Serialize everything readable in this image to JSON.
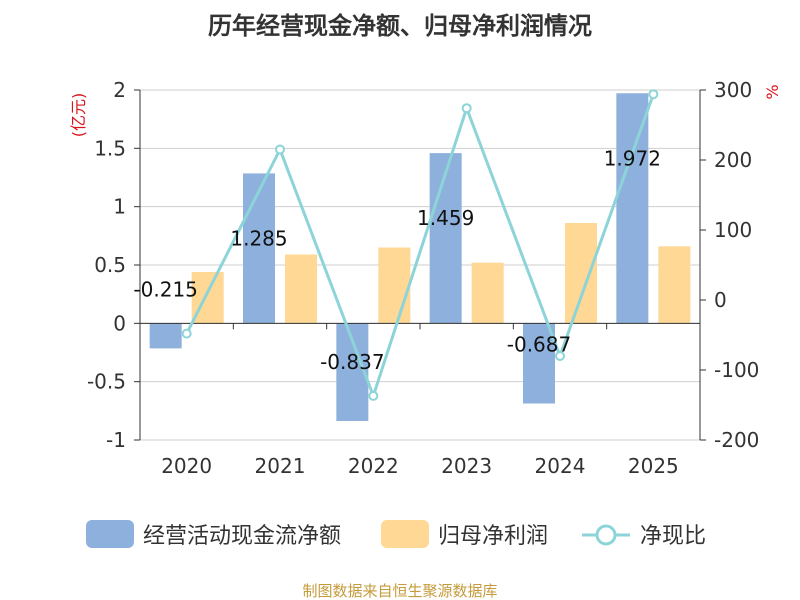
{
  "title": "历年经营现金净额、归母净利润情况",
  "source": "制图数据来自恒生聚源数据库",
  "left_unit": "(亿元)",
  "right_unit": "%",
  "colors": {
    "cash": "#8eb0dc",
    "profit": "#fed894",
    "ratio": "#8dd4d8"
  },
  "chart_data": {
    "type": "bar",
    "categories": [
      "2020",
      "2021",
      "2022",
      "2023",
      "2024",
      "2025"
    ],
    "series": [
      {
        "name": "经营活动现金流净额",
        "axis": "left",
        "kind": "bar",
        "values": [
          -0.215,
          1.285,
          -0.837,
          1.459,
          -0.687,
          1.972
        ],
        "labels": [
          "-0.215",
          "1.285",
          "-0.837",
          "1.459",
          "-0.687",
          "1.972"
        ]
      },
      {
        "name": "归母净利润",
        "axis": "left",
        "kind": "bar",
        "values": [
          0.44,
          0.59,
          0.65,
          0.52,
          0.86,
          0.66
        ]
      },
      {
        "name": "净现比",
        "axis": "right",
        "kind": "line",
        "values": [
          -48,
          215,
          -137,
          274,
          -80,
          294
        ]
      }
    ],
    "y_left": {
      "min": -1,
      "max": 2,
      "ticks": [
        "-1",
        "-0.5",
        "0",
        "0.5",
        "1",
        "1.5",
        "2"
      ]
    },
    "y_right": {
      "min": -200,
      "max": 300,
      "ticks": [
        "-200",
        "-100",
        "0",
        "100",
        "200",
        "300"
      ]
    },
    "grid": true,
    "legend": "bottom"
  }
}
